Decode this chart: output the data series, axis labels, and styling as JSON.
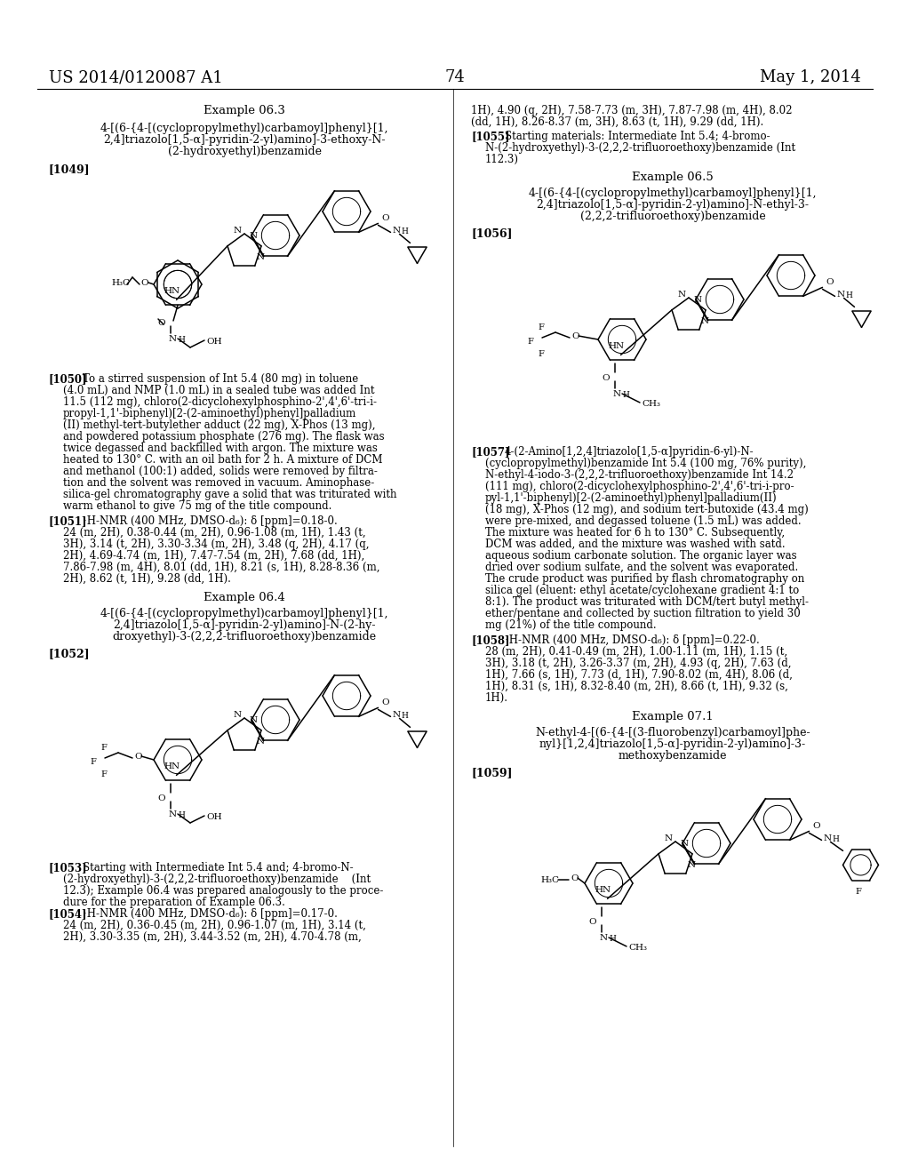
{
  "patent_number": "US 2014/0120087 A1",
  "page_number": "74",
  "date": "May 1, 2014",
  "bg_color": "#ffffff"
}
